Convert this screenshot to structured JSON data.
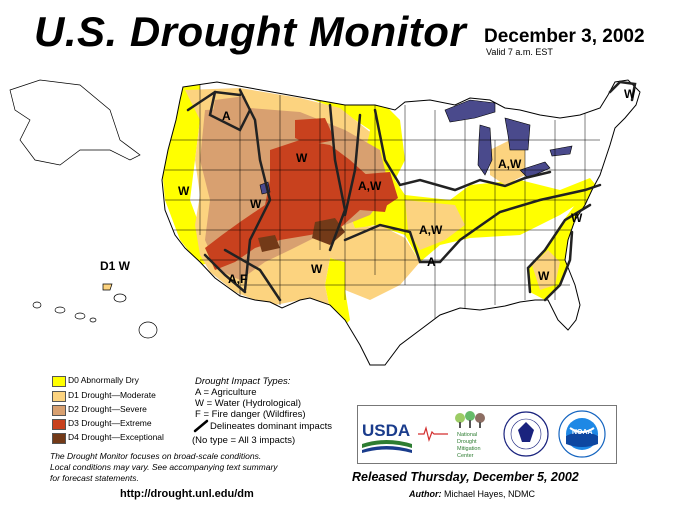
{
  "header": {
    "title": "U.S. Drought Monitor",
    "date": "December 3, 2002",
    "valid": "Valid 7 a.m. EST"
  },
  "map_labels": {
    "hawaii": "D1 W",
    "impact_marks": [
      "A",
      "W",
      "W",
      "W",
      "A,W",
      "A,W",
      "A,W",
      "A",
      "W",
      "W",
      "W",
      "A,F",
      "W",
      "W"
    ]
  },
  "legend": {
    "categories": [
      {
        "label": "D0 Abnormally Dry",
        "color": "#ffff00"
      },
      {
        "label": "D1 Drought—Moderate",
        "color": "#fcd37f"
      },
      {
        "label": "D2 Drought—Severe",
        "color": "#d8a070"
      },
      {
        "label": "D3 Drought—Extreme",
        "color": "#c8411e"
      },
      {
        "label": "D4 Drought—Exceptional",
        "color": "#733a18"
      }
    ],
    "impact_title": "Drought Impact Types:",
    "impact_items": [
      "A = Agriculture",
      "W = Water (Hydrological)",
      "F = Fire danger (Wildfires)"
    ],
    "delineates": "Delineates dominant impacts",
    "no_type": "(No type = All 3 impacts)"
  },
  "footer": {
    "note_line1": "The Drought Monitor focuses on broad-scale conditions.",
    "note_line2": "Local conditions may vary. See accompanying text summary",
    "note_line3": "for forecast statements.",
    "url": "http://drought.unl.edu/dm",
    "released": "Released Thursday, December 5, 2002",
    "author_label": "Author:",
    "author_name": "Michael Hayes, NDMC"
  },
  "logos": {
    "usda": "USDA",
    "ndmc_line1": "National",
    "ndmc_line2": "Drought",
    "ndmc_line3": "Mitigation",
    "ndmc_line4": "Center",
    "noaa": "NOAA"
  },
  "colors": {
    "d0": "#ffff00",
    "d1": "#fcd37f",
    "d2": "#d8a070",
    "d3": "#c8411e",
    "d4": "#733a18",
    "lakes": "#4a4a8c",
    "state_lines": "#000000",
    "impact_lines": "#222222"
  }
}
